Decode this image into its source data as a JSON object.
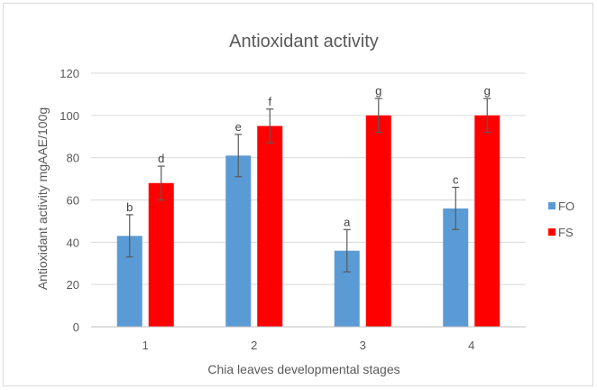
{
  "chart_data": {
    "type": "bar",
    "title": "Antioxidant activity",
    "xlabel": "Chia leaves developmental stages",
    "ylabel": "Antioxidant activity mgAAE/100g",
    "categories": [
      "1",
      "2",
      "3",
      "4"
    ],
    "ylim": [
      0,
      120
    ],
    "yticks": [
      0,
      20,
      40,
      60,
      80,
      100,
      120
    ],
    "grid": true,
    "legend_position": "right",
    "series": [
      {
        "name": "FO",
        "color": "#5b9bd5",
        "values": [
          43,
          81,
          36,
          56
        ],
        "errors": [
          10,
          10,
          10,
          10
        ],
        "labels": [
          "b",
          "e",
          "a",
          "c"
        ]
      },
      {
        "name": "FS",
        "color": "#ff0000",
        "values": [
          68,
          95,
          100,
          100
        ],
        "errors": [
          8,
          8,
          8,
          8
        ],
        "labels": [
          "d",
          "f",
          "g",
          "g"
        ]
      }
    ]
  }
}
